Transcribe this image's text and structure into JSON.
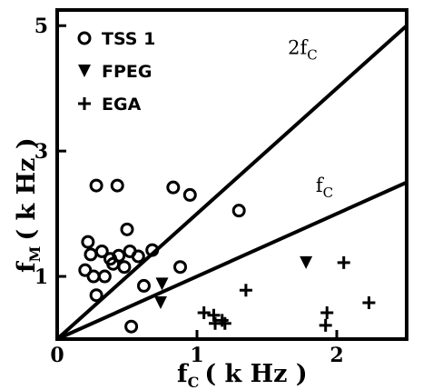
{
  "chart_data": {
    "type": "scatter",
    "title": "",
    "xlabel": "f",
    "xlabel_sub": "C",
    "xlabel_unit": "( k Hz )",
    "ylabel": "f",
    "ylabel_sub": "M",
    "ylabel_unit": "( k Hz )",
    "xlim": [
      0,
      2.5
    ],
    "ylim": [
      0,
      5.25
    ],
    "x_ticks": [
      {
        "value": 0,
        "label": "0"
      },
      {
        "value": 1,
        "label": "1"
      },
      {
        "value": 2,
        "label": "2"
      }
    ],
    "y_ticks": [
      {
        "value": 1,
        "label": "1"
      },
      {
        "value": 3,
        "label": "3"
      },
      {
        "value": 5,
        "label": "5"
      }
    ],
    "grid": false,
    "legend_position": "top-left",
    "reference_lines": [
      {
        "label": "2f",
        "sub": "C",
        "slope": 2
      },
      {
        "label": "f",
        "sub": "C",
        "slope": 1
      }
    ],
    "series": [
      {
        "name": "TSS 1",
        "marker": "open-circle",
        "points": [
          [
            0.28,
            2.45
          ],
          [
            0.43,
            2.45
          ],
          [
            0.83,
            2.42
          ],
          [
            0.95,
            2.3
          ],
          [
            1.3,
            2.05
          ],
          [
            0.5,
            1.75
          ],
          [
            0.22,
            1.55
          ],
          [
            0.24,
            1.35
          ],
          [
            0.32,
            1.4
          ],
          [
            0.38,
            1.28
          ],
          [
            0.44,
            1.33
          ],
          [
            0.52,
            1.4
          ],
          [
            0.58,
            1.32
          ],
          [
            0.68,
            1.42
          ],
          [
            0.4,
            1.2
          ],
          [
            0.48,
            1.15
          ],
          [
            0.2,
            1.1
          ],
          [
            0.26,
            1.0
          ],
          [
            0.34,
            1.0
          ],
          [
            0.88,
            1.15
          ],
          [
            0.28,
            0.7
          ],
          [
            0.62,
            0.85
          ],
          [
            0.53,
            0.2
          ]
        ]
      },
      {
        "name": "FPEG",
        "marker": "filled-down-triangle",
        "points": [
          [
            0.75,
            0.88
          ],
          [
            0.74,
            0.58
          ],
          [
            1.78,
            1.22
          ]
        ]
      },
      {
        "name": "EGA",
        "marker": "plus",
        "points": [
          [
            1.05,
            0.42
          ],
          [
            1.12,
            0.38
          ],
          [
            1.18,
            0.3
          ],
          [
            1.13,
            0.25
          ],
          [
            1.2,
            0.25
          ],
          [
            1.35,
            0.78
          ],
          [
            1.93,
            0.42
          ],
          [
            1.92,
            0.22
          ],
          [
            2.05,
            1.22
          ],
          [
            2.23,
            0.58
          ]
        ]
      }
    ]
  }
}
